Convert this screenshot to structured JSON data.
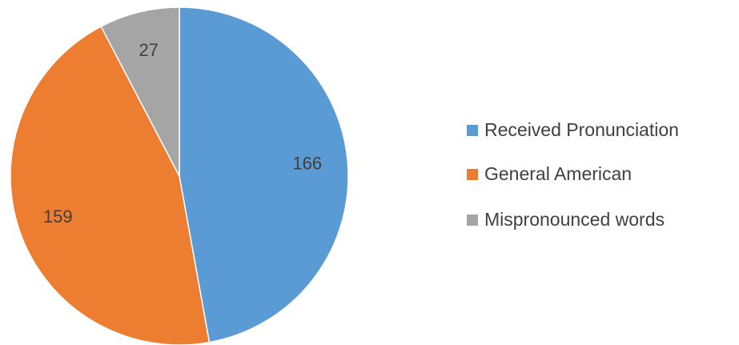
{
  "chart_data": {
    "type": "pie",
    "categories": [
      "Received Pronunciation",
      "General American",
      "Mispronounced words"
    ],
    "values": [
      166,
      159,
      27
    ],
    "colors": [
      "#5b9bd5",
      "#ed7d31",
      "#a5a5a5"
    ],
    "legend": "right"
  }
}
